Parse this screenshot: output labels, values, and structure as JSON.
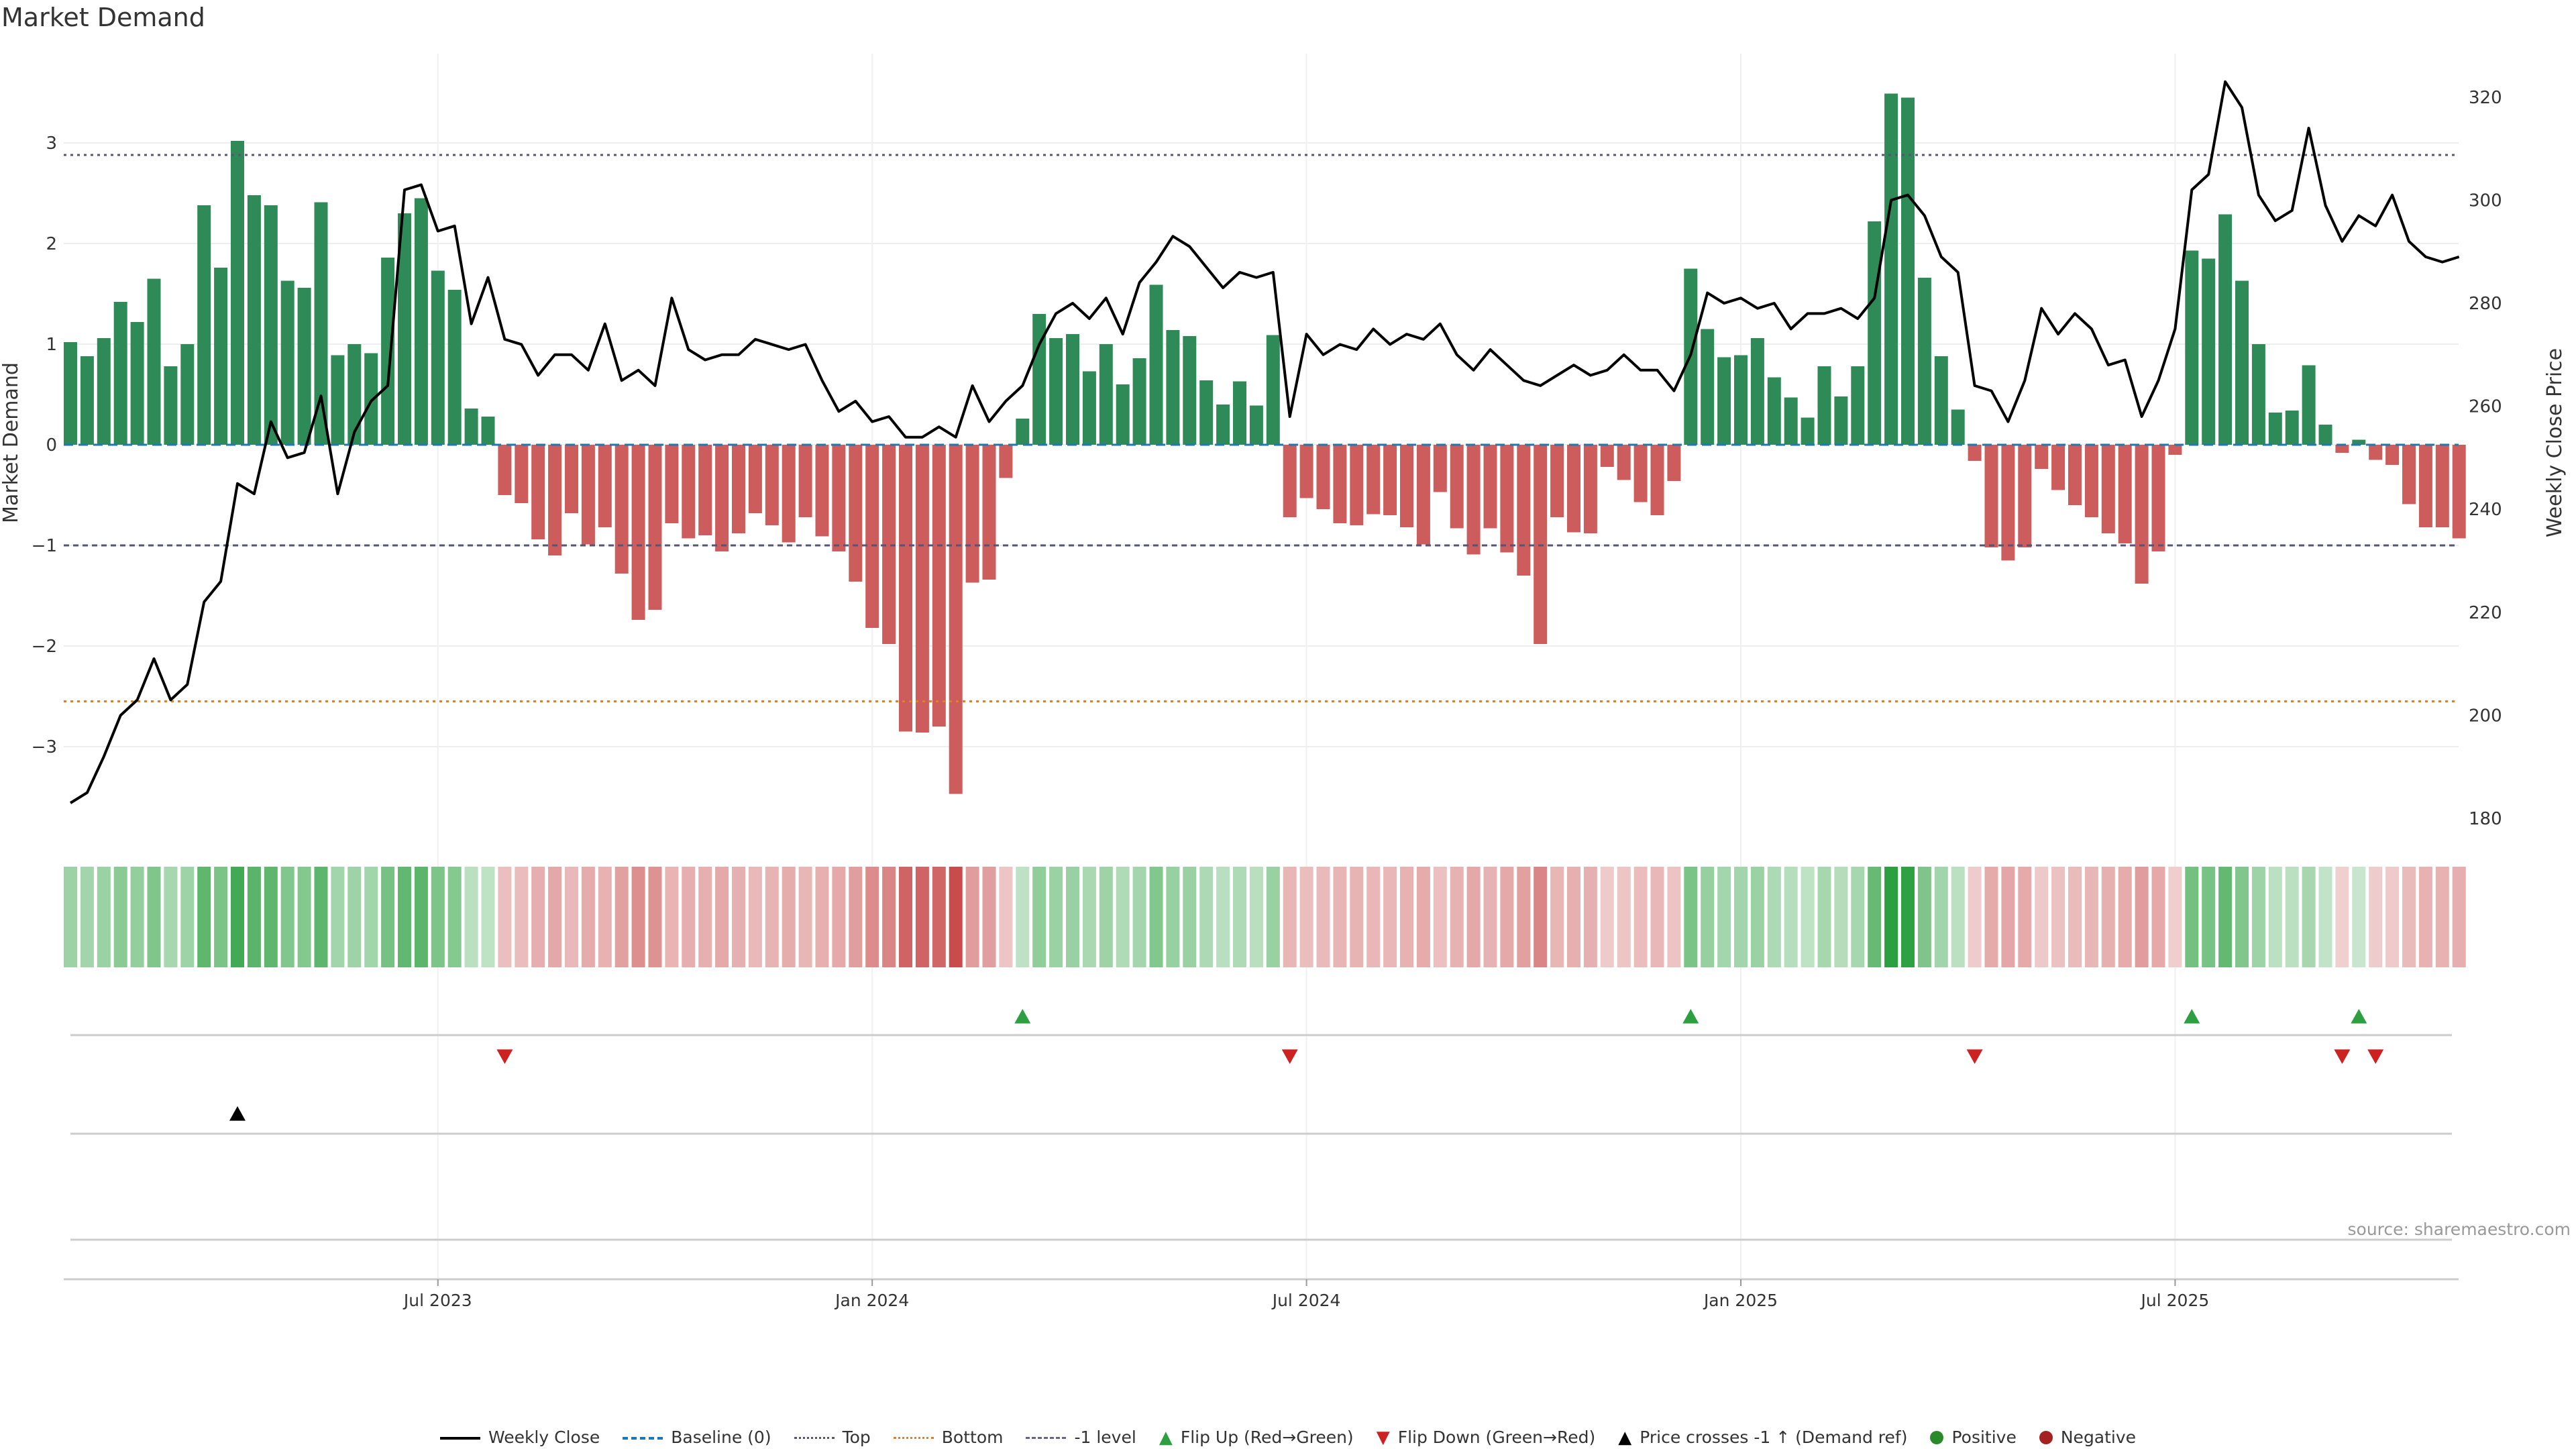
{
  "title": "Market Demand",
  "source": "source: sharemaestro.com",
  "colors": {
    "positive_bar": "#2e8b57",
    "negative_bar": "#cd5c5c",
    "flip_up": "#2ca040",
    "flip_down": "#cc2222",
    "price_line": "#000000",
    "top_line": "#555577",
    "bottom_line": "#e08020",
    "baseline": "#1f77b4"
  },
  "legend": [
    {
      "label": "Weekly Close",
      "swatch": "line"
    },
    {
      "label": "Baseline (0)",
      "swatch": "dash"
    },
    {
      "label": "Top",
      "swatch": "top"
    },
    {
      "label": "Bottom",
      "swatch": "bottom"
    },
    {
      "label": "-1 level",
      "swatch": "m1"
    },
    {
      "label": "Flip Up (Red→Green)",
      "swatch": "tri-up-green"
    },
    {
      "label": "Flip Down (Green→Red)",
      "swatch": "tri-down-red"
    },
    {
      "label": "Price crosses -1 ↑ (Demand ref)",
      "swatch": "tri-up-black"
    },
    {
      "label": "Positive",
      "swatch": "dot-green"
    },
    {
      "label": "Negative",
      "swatch": "dot-red"
    }
  ],
  "chart_data": {
    "type": "bar",
    "title": "Market Demand",
    "ylabel": "Market Demand",
    "y2label": "Weekly Close Price",
    "ylim": [
      -3.8,
      3.9
    ],
    "y2lim": [
      176,
      324
    ],
    "yticks": [
      -3,
      -2,
      -1,
      0,
      1,
      2,
      3
    ],
    "y2ticks": [
      180,
      200,
      220,
      240,
      260,
      280,
      300,
      320
    ],
    "xtick_labels": [
      "Jul 2023",
      "Jan 2024",
      "Jul 2024",
      "Jan 2025",
      "Jul 2025"
    ],
    "xtick_weeks": [
      22,
      48,
      74,
      100,
      126
    ],
    "levels": {
      "top": 2.88,
      "bottom": -2.55,
      "minus_one": -1.0,
      "baseline": 0
    },
    "weeks": 144,
    "demand": [
      1.02,
      0.88,
      1.06,
      1.42,
      1.22,
      1.65,
      0.78,
      1.0,
      2.38,
      1.76,
      3.02,
      2.48,
      2.38,
      1.63,
      1.56,
      2.41,
      0.89,
      1.0,
      0.91,
      1.86,
      2.3,
      2.45,
      1.73,
      1.54,
      0.36,
      0.28,
      -0.5,
      -0.58,
      -0.94,
      -1.1,
      -0.68,
      -0.99,
      -0.82,
      -1.28,
      -1.74,
      -1.64,
      -0.78,
      -0.93,
      -0.9,
      -1.06,
      -0.88,
      -0.68,
      -0.8,
      -0.97,
      -0.72,
      -0.91,
      -1.06,
      -1.36,
      -1.82,
      -1.98,
      -2.85,
      -2.86,
      -2.8,
      -3.47,
      -1.37,
      -1.34,
      -0.33,
      0.26,
      1.3,
      1.06,
      1.1,
      0.73,
      1.0,
      0.6,
      0.86,
      1.59,
      1.14,
      1.08,
      0.64,
      0.4,
      0.63,
      0.39,
      1.09,
      -0.72,
      -0.53,
      -0.64,
      -0.78,
      -0.8,
      -0.69,
      -0.7,
      -0.82,
      -0.99,
      -0.47,
      -0.83,
      -1.09,
      -0.83,
      -1.07,
      -1.3,
      -1.98,
      -0.72,
      -0.87,
      -0.88,
      -0.22,
      -0.35,
      -0.57,
      -0.7,
      -0.36,
      1.75,
      1.15,
      0.87,
      0.89,
      1.06,
      0.67,
      0.47,
      0.27,
      0.78,
      0.48,
      0.78,
      2.22,
      3.49,
      3.45,
      1.66,
      0.88,
      0.35,
      -0.16,
      -1.02,
      -1.15,
      -1.02,
      -0.24,
      -0.45,
      -0.6,
      -0.72,
      -0.88,
      -0.98,
      -1.38,
      -1.06,
      -0.1,
      1.93,
      1.85,
      2.29,
      1.63,
      1.0,
      0.32,
      0.34,
      0.79,
      0.2,
      -0.08,
      0.05,
      -0.15,
      -0.2,
      -0.59,
      -0.82,
      -0.82,
      -0.93
    ],
    "close": [
      183,
      185,
      192,
      200,
      203,
      211,
      203,
      206,
      222,
      226,
      245,
      243,
      257,
      250,
      251,
      262,
      243,
      255,
      261,
      264,
      302,
      303,
      294,
      295,
      276,
      285,
      273,
      272,
      266,
      270,
      270,
      267,
      276,
      265,
      267,
      264,
      281,
      271,
      269,
      270,
      270,
      273,
      272,
      271,
      272,
      265,
      259,
      261,
      257,
      258,
      254,
      254,
      256,
      254,
      264,
      257,
      261,
      264,
      272,
      278,
      280,
      277,
      281,
      274,
      284,
      288,
      293,
      291,
      287,
      283,
      286,
      285,
      286,
      258,
      274,
      270,
      272,
      271,
      275,
      272,
      274,
      273,
      276,
      270,
      267,
      271,
      268,
      265,
      264,
      266,
      268,
      266,
      267,
      270,
      267,
      267,
      263,
      270,
      282,
      280,
      281,
      279,
      280,
      275,
      278,
      278,
      279,
      277,
      281,
      300,
      301,
      297,
      289,
      286,
      264,
      263,
      257,
      265,
      279,
      274,
      278,
      275,
      268,
      269,
      258,
      265,
      275,
      302,
      305,
      323,
      318,
      301,
      296,
      298,
      314,
      299,
      292,
      297,
      295,
      301,
      292,
      289,
      288,
      289
    ],
    "flip_up_weeks": [
      57,
      97,
      127,
      137
    ],
    "flip_down_weeks": [
      26,
      73,
      114,
      136,
      138
    ],
    "price_cross_weeks": [
      10
    ]
  }
}
